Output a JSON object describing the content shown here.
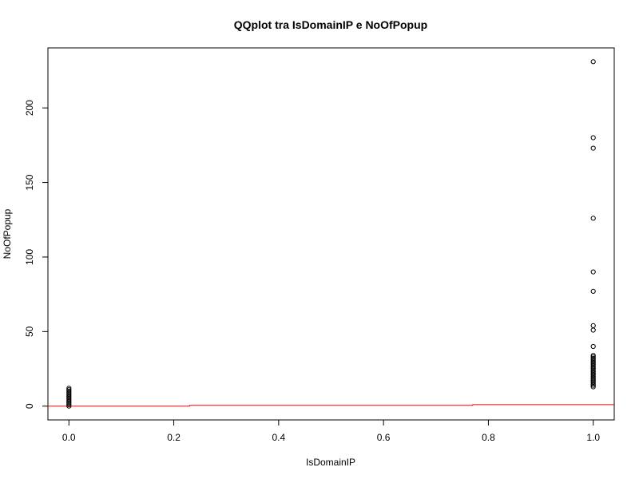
{
  "chart_data": {
    "type": "scatter",
    "title": "QQplot tra IsDomainIP e NoOfPopup",
    "xlabel": "IsDomainIP",
    "ylabel": "NoOfPopup",
    "xlim": [
      -0.04,
      1.04
    ],
    "ylim": [
      -9.24,
      240.24
    ],
    "x_ticks": [
      0.0,
      0.2,
      0.4,
      0.6,
      0.8,
      1.0
    ],
    "x_tick_labels": [
      "0.0",
      "0.2",
      "0.4",
      "0.6",
      "0.8",
      "1.0"
    ],
    "y_ticks": [
      0,
      50,
      100,
      150,
      200
    ],
    "y_tick_labels": [
      "0",
      "50",
      "100",
      "150",
      "200"
    ],
    "grid": false,
    "series": [
      {
        "marker": "open-circle",
        "color": "#000000",
        "points": [
          [
            0,
            0
          ],
          [
            0,
            1
          ],
          [
            0,
            2
          ],
          [
            0,
            3
          ],
          [
            0,
            4
          ],
          [
            0,
            5
          ],
          [
            0,
            6
          ],
          [
            0,
            7
          ],
          [
            0,
            8
          ],
          [
            0,
            9
          ],
          [
            0,
            10
          ],
          [
            0,
            11
          ],
          [
            0,
            12
          ],
          [
            1,
            13
          ],
          [
            1,
            14
          ],
          [
            1,
            15
          ],
          [
            1,
            16
          ],
          [
            1,
            17
          ],
          [
            1,
            18
          ],
          [
            1,
            19
          ],
          [
            1,
            20
          ],
          [
            1,
            21
          ],
          [
            1,
            22
          ],
          [
            1,
            23
          ],
          [
            1,
            24
          ],
          [
            1,
            25
          ],
          [
            1,
            26
          ],
          [
            1,
            27
          ],
          [
            1,
            28
          ],
          [
            1,
            29
          ],
          [
            1,
            30
          ],
          [
            1,
            31
          ],
          [
            1,
            32
          ],
          [
            1,
            33
          ],
          [
            1,
            34
          ],
          [
            1,
            40
          ],
          [
            1,
            51
          ],
          [
            1,
            54
          ],
          [
            1,
            77
          ],
          [
            1,
            90
          ],
          [
            1,
            126
          ],
          [
            1,
            173
          ],
          [
            1,
            180
          ],
          [
            1,
            231
          ]
        ]
      },
      {
        "type": "step-line",
        "color": "#ff0000",
        "points": [
          [
            -0.04,
            0
          ],
          [
            0.23,
            0
          ],
          [
            0.23,
            0.5
          ],
          [
            0.77,
            0.5
          ],
          [
            0.77,
            1
          ],
          [
            1.04,
            1
          ]
        ]
      }
    ]
  }
}
